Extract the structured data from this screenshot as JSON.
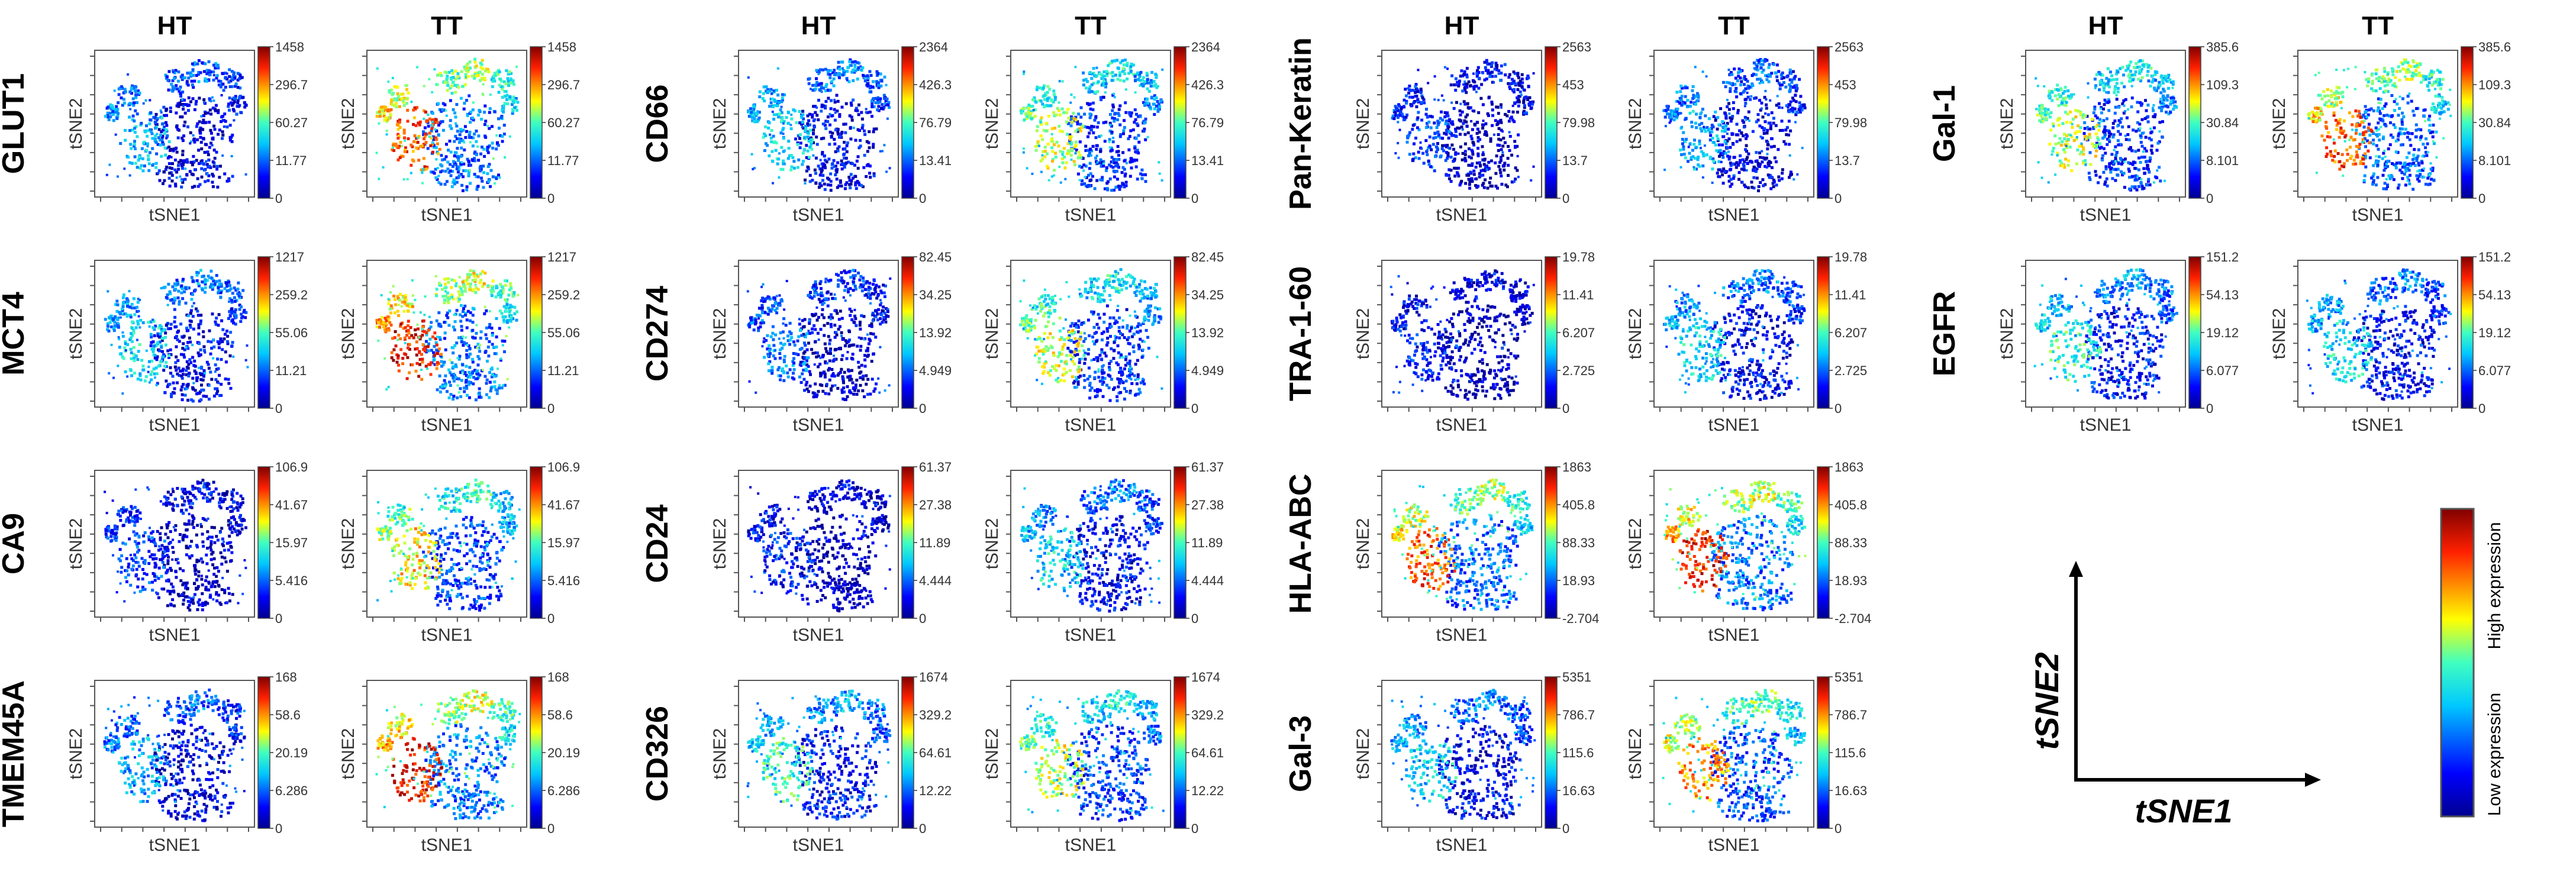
{
  "figure": {
    "column_headers": [
      "HT",
      "TT"
    ],
    "axis_x_label": "tSNE1",
    "axis_y_label": "tSNE2",
    "colorbar_low_label": "Low expression",
    "colorbar_high_label": "High expression",
    "legend_x_label": "tSNE1",
    "legend_y_label": "tSNE2"
  },
  "chart_data": {
    "type": "heatmap",
    "description_kind": "tSNE scatter maps colored by marker expression",
    "conditions": [
      "HT",
      "TT"
    ],
    "markers": [
      {
        "name": "GLUT1",
        "colorbar_ticks": [
          "1458",
          "296.7",
          "60.27",
          "11.77",
          "0"
        ],
        "HT_level": 0.25,
        "TT_level": 0.6
      },
      {
        "name": "MCT4",
        "colorbar_ticks": [
          "1217",
          "259.2",
          "55.06",
          "11.21",
          "0"
        ],
        "HT_level": 0.3,
        "TT_level": 0.65
      },
      {
        "name": "CA9",
        "colorbar_ticks": [
          "106.9",
          "41.67",
          "15.97",
          "5.416",
          "0"
        ],
        "HT_level": 0.15,
        "TT_level": 0.5
      },
      {
        "name": "TMEM45A",
        "colorbar_ticks": [
          "168",
          "58.6",
          "20.19",
          "6.286",
          "0"
        ],
        "HT_level": 0.25,
        "TT_level": 0.65
      },
      {
        "name": "CD66",
        "colorbar_ticks": [
          "2364",
          "426.3",
          "76.79",
          "13.41",
          "0"
        ],
        "HT_level": 0.3,
        "TT_level": 0.45
      },
      {
        "name": "CD274",
        "colorbar_ticks": [
          "82.45",
          "34.25",
          "13.92",
          "4.949",
          "0"
        ],
        "HT_level": 0.2,
        "TT_level": 0.45
      },
      {
        "name": "CD24",
        "colorbar_ticks": [
          "61.37",
          "27.38",
          "11.89",
          "4.444",
          "0"
        ],
        "HT_level": 0.12,
        "TT_level": 0.3
      },
      {
        "name": "CD326",
        "colorbar_ticks": [
          "1674",
          "329.2",
          "64.61",
          "12.22",
          "0"
        ],
        "HT_level": 0.35,
        "TT_level": 0.45
      },
      {
        "name": "Pan-Keratin",
        "colorbar_ticks": [
          "2563",
          "453",
          "79.98",
          "13.7",
          "0"
        ],
        "HT_level": 0.15,
        "TT_level": 0.25
      },
      {
        "name": "TRA-1-60",
        "colorbar_ticks": [
          "19.78",
          "11.41",
          "6.207",
          "2.725",
          "0"
        ],
        "HT_level": 0.12,
        "TT_level": 0.3
      },
      {
        "name": "HLA-ABC",
        "colorbar_ticks": [
          "1863",
          "405.8",
          "88.33",
          "18.93",
          "-2.704"
        ],
        "HT_level": 0.6,
        "TT_level": 0.65
      },
      {
        "name": "Gal-3",
        "colorbar_ticks": [
          "5351",
          "786.7",
          "115.6",
          "16.63",
          "0"
        ],
        "HT_level": 0.3,
        "TT_level": 0.55
      },
      {
        "name": "Gal-1",
        "colorbar_ticks": [
          "385.6",
          "109.3",
          "30.84",
          "8.101",
          "0"
        ],
        "HT_level": 0.45,
        "TT_level": 0.6
      },
      {
        "name": "EGFR",
        "colorbar_ticks": [
          "151.2",
          "54.13",
          "19.12",
          "6.077",
          "0"
        ],
        "HT_level": 0.35,
        "TT_level": 0.3
      }
    ]
  }
}
